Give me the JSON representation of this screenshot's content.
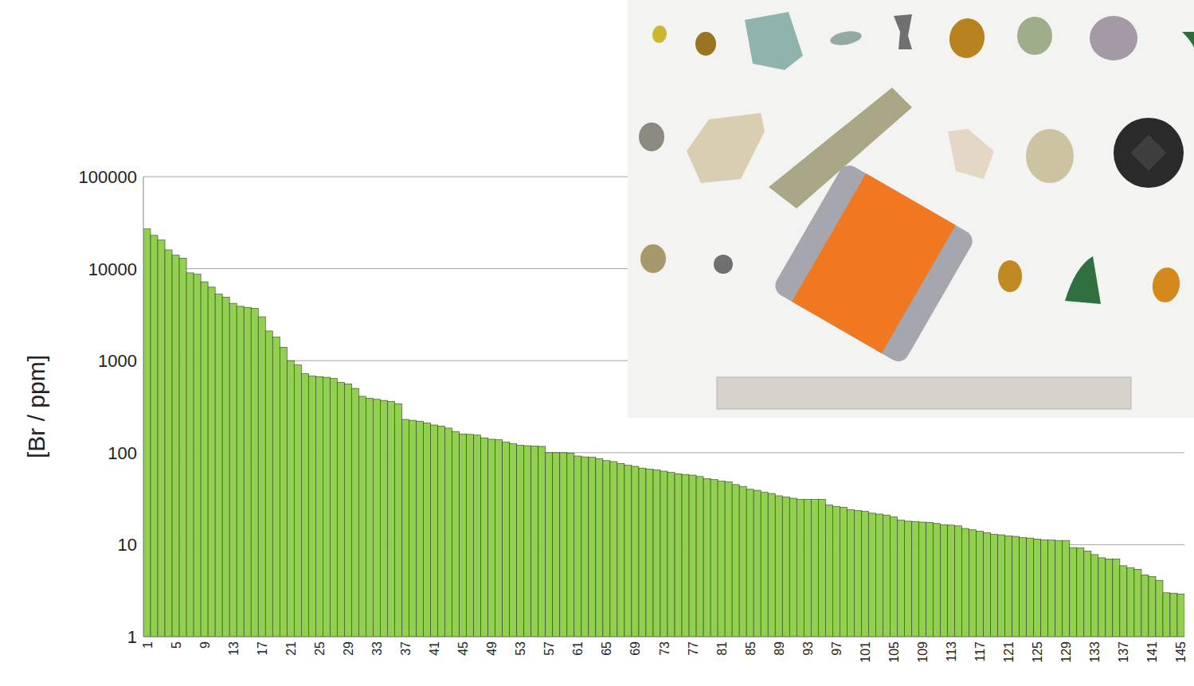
{
  "chart_data": {
    "type": "bar",
    "y_label": "[Br / ppm]",
    "log": "y",
    "grid": true,
    "color": "#92d050",
    "categories": [
      "1",
      null,
      null,
      null,
      "5",
      null,
      null,
      null,
      "9",
      null,
      null,
      null,
      "13",
      null,
      null,
      null,
      "17",
      null,
      null,
      null,
      "21",
      null,
      null,
      null,
      "25",
      null,
      null,
      null,
      "29",
      null,
      null,
      null,
      "33",
      null,
      null,
      null,
      "37",
      null,
      null,
      null,
      "41",
      null,
      null,
      null,
      "45",
      null,
      null,
      null,
      "49",
      null,
      null,
      null,
      "53",
      null,
      null,
      null,
      "57",
      null,
      null,
      null,
      "61",
      null,
      null,
      null,
      "65",
      null,
      null,
      null,
      "69",
      null,
      null,
      null,
      "73",
      null,
      null,
      null,
      "77",
      null,
      null,
      null,
      "81",
      null,
      null,
      null,
      "85",
      null,
      null,
      null,
      "89",
      null,
      null,
      null,
      "93",
      null,
      null,
      null,
      "97",
      null,
      null,
      null,
      "101",
      null,
      null,
      null,
      "105",
      null,
      null,
      null,
      "109",
      null,
      null,
      null,
      "113",
      null,
      null,
      null,
      "117",
      null,
      null,
      null,
      "121",
      null,
      null,
      null,
      "125",
      null,
      null,
      null,
      "129",
      null,
      null,
      null,
      "133",
      null,
      null,
      null,
      "137",
      null,
      null,
      null,
      "141",
      null,
      null,
      null,
      "145"
    ],
    "values": [
      27000,
      23000,
      20500,
      16000,
      14000,
      13000,
      9000,
      8700,
      7200,
      6300,
      5300,
      4900,
      4200,
      3900,
      3800,
      3700,
      3000,
      2100,
      1800,
      1400,
      1000,
      900,
      720,
      680,
      670,
      660,
      640,
      580,
      560,
      500,
      410,
      390,
      380,
      370,
      360,
      340,
      230,
      225,
      220,
      210,
      200,
      195,
      185,
      170,
      160,
      158,
      155,
      145,
      140,
      138,
      130,
      125,
      120,
      119,
      118,
      117,
      100,
      100,
      100,
      99,
      92,
      90,
      89,
      86,
      82,
      80,
      76,
      73,
      71,
      68,
      66,
      65,
      63,
      61,
      59,
      58,
      57,
      55,
      52,
      51,
      49,
      48,
      45,
      43,
      40,
      39,
      37,
      36,
      34,
      33,
      32,
      31,
      31,
      31,
      31,
      27,
      26,
      25.5,
      24,
      23.5,
      23,
      22,
      21.5,
      21,
      20,
      18.5,
      18,
      17.8,
      17.6,
      17.5,
      17,
      16.5,
      16.3,
      16,
      15,
      14.5,
      14,
      13.5,
      13,
      12.8,
      12.5,
      12.3,
      12,
      11.8,
      11.5,
      11.3,
      11.2,
      11.1,
      11.1,
      9.3,
      9.2,
      8.5,
      7.8,
      7.2,
      7,
      7,
      5.9,
      5.6,
      5.4,
      4.7,
      4.5,
      4.1,
      3,
      2.95,
      2.9
    ],
    "ylim": [
      1,
      100000
    ],
    "yticks": [
      1,
      10,
      100,
      1000,
      10000,
      100000
    ]
  }
}
